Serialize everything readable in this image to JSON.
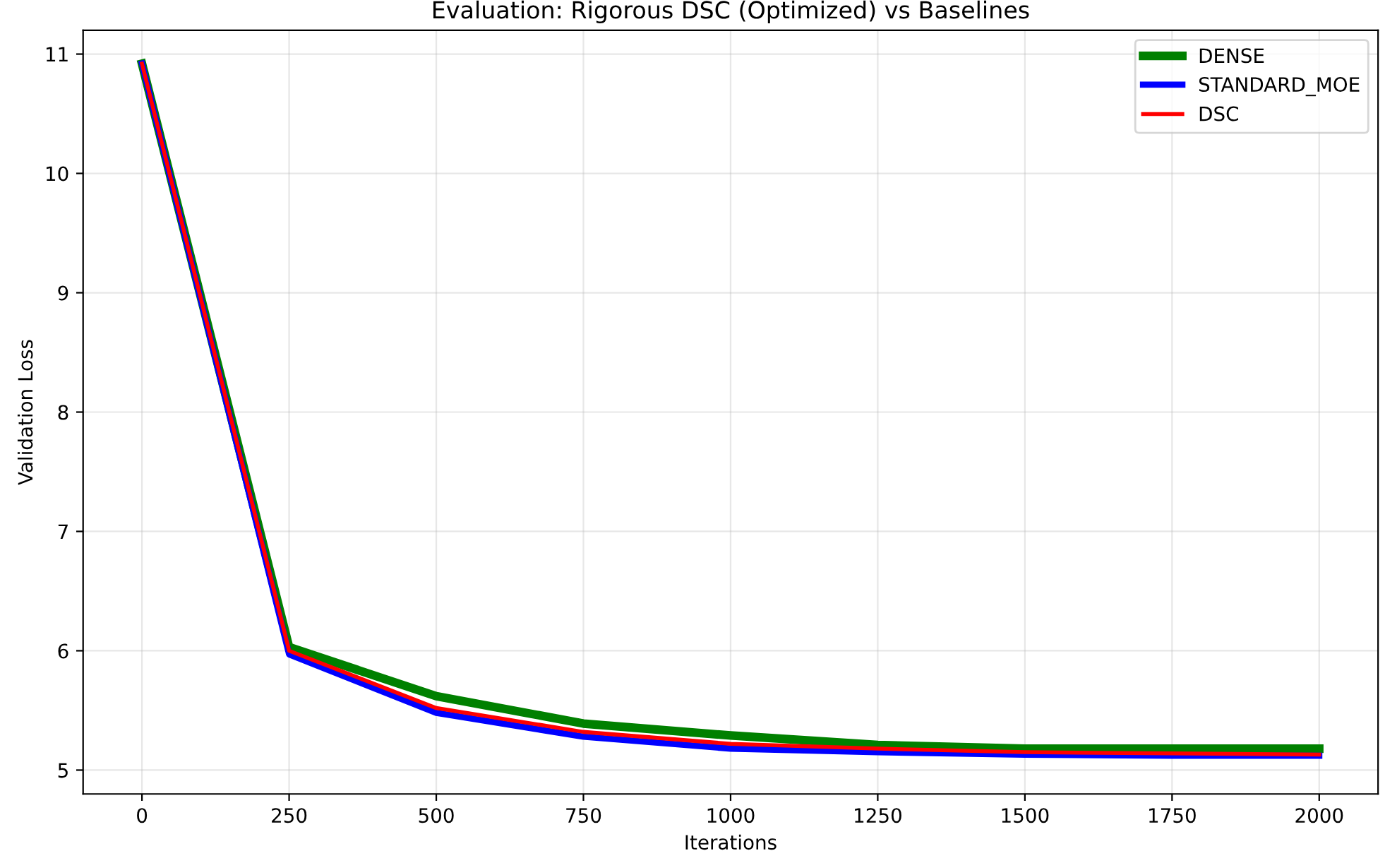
{
  "chart_data": {
    "type": "line",
    "title": "Evaluation: Rigorous DSC (Optimized) vs Baselines",
    "xlabel": "Iterations",
    "ylabel": "Validation Loss",
    "x": [
      0,
      250,
      500,
      750,
      1000,
      1250,
      1500,
      1750,
      2000
    ],
    "series": [
      {
        "name": "DENSE",
        "color": "#008000",
        "values": [
          10.92,
          6.03,
          5.62,
          5.39,
          5.29,
          5.21,
          5.18,
          5.18,
          5.18
        ]
      },
      {
        "name": "STANDARD_MOE",
        "color": "#0000ff",
        "values": [
          10.92,
          5.97,
          5.48,
          5.28,
          5.18,
          5.15,
          5.13,
          5.12,
          5.12
        ]
      },
      {
        "name": "DSC",
        "color": "#ff0000",
        "values": [
          10.92,
          6.0,
          5.52,
          5.32,
          5.22,
          5.18,
          5.15,
          5.14,
          5.13
        ]
      }
    ],
    "xlim": [
      -100,
      2100
    ],
    "ylim": [
      4.8,
      11.2
    ],
    "xticks": [
      0,
      250,
      500,
      750,
      1000,
      1250,
      1500,
      1750,
      2000
    ],
    "yticks": [
      5,
      6,
      7,
      8,
      9,
      10,
      11
    ],
    "grid": true,
    "legend": "top right",
    "marker": "none",
    "line_style": "solid"
  }
}
